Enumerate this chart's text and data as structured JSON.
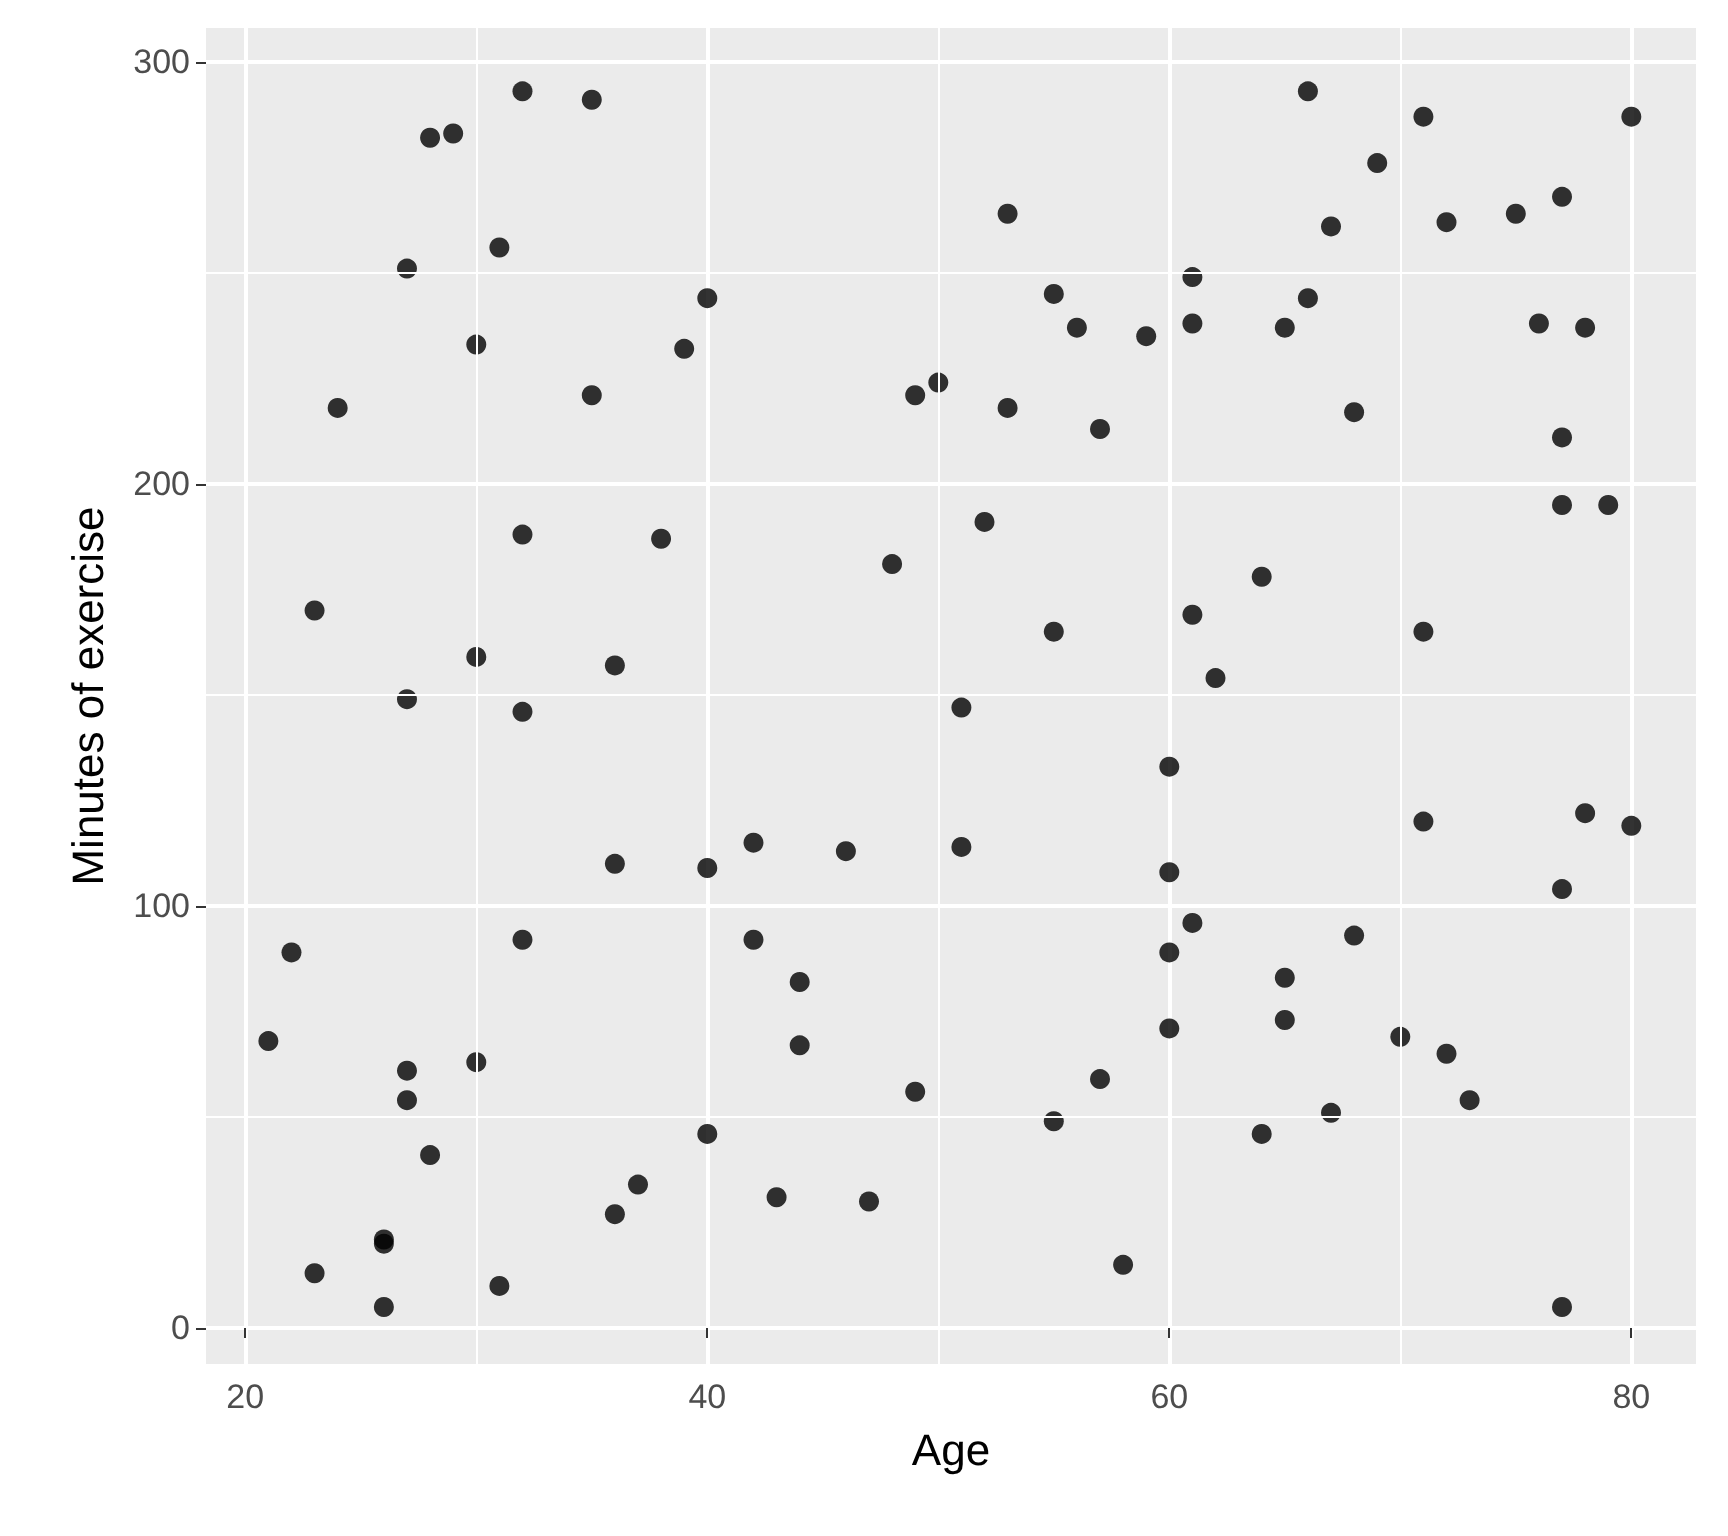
{
  "chart_data": {
    "type": "scatter",
    "xlabel": "Age",
    "ylabel": "Minutes of exercise",
    "xlim": [
      18.3,
      82.8
    ],
    "ylim": [
      -8.5,
      308
    ],
    "xticks": [
      20,
      40,
      60,
      80
    ],
    "yticks": [
      0,
      100,
      200,
      300
    ],
    "grid": true,
    "marker": "circle",
    "series": [
      {
        "color": "#000000",
        "x": [
          21,
          22,
          23,
          23,
          24,
          26,
          26,
          26,
          27,
          27,
          27,
          27,
          28,
          28,
          29,
          30,
          30,
          30,
          31,
          31,
          32,
          32,
          32,
          32,
          35,
          35,
          36,
          36,
          36,
          37,
          38,
          39,
          40,
          40,
          40,
          42,
          42,
          43,
          44,
          44,
          46,
          47,
          48,
          49,
          49,
          50,
          51,
          51,
          52,
          53,
          53,
          55,
          55,
          55,
          56,
          57,
          57,
          58,
          59,
          60,
          60,
          60,
          60,
          61,
          61,
          61,
          61,
          62,
          64,
          64,
          65,
          65,
          65,
          66,
          66,
          67,
          67,
          68,
          68,
          69,
          70,
          71,
          71,
          71,
          72,
          72,
          73,
          75,
          76,
          77,
          77,
          77,
          77,
          77,
          78,
          78,
          79,
          80,
          80
        ],
        "values": [
          68,
          89,
          170,
          13,
          218,
          20,
          21,
          5,
          251,
          149,
          61,
          54,
          282,
          41,
          283,
          233,
          159,
          63,
          256,
          10,
          293,
          188,
          146,
          92,
          291,
          221,
          157,
          110,
          27,
          34,
          187,
          232,
          244,
          109,
          46,
          115,
          92,
          31,
          82,
          67,
          113,
          30,
          181,
          221,
          56,
          224,
          147,
          114,
          191,
          264,
          218,
          245,
          165,
          49,
          237,
          213,
          59,
          15,
          235,
          133,
          108,
          89,
          71,
          249,
          238,
          169,
          96,
          154,
          178,
          46,
          237,
          83,
          73,
          293,
          244,
          261,
          51,
          217,
          93,
          276,
          69,
          287,
          165,
          120,
          262,
          65,
          54,
          264,
          238,
          268,
          211,
          195,
          104,
          5,
          237,
          122,
          195,
          287,
          119
        ]
      }
    ]
  }
}
